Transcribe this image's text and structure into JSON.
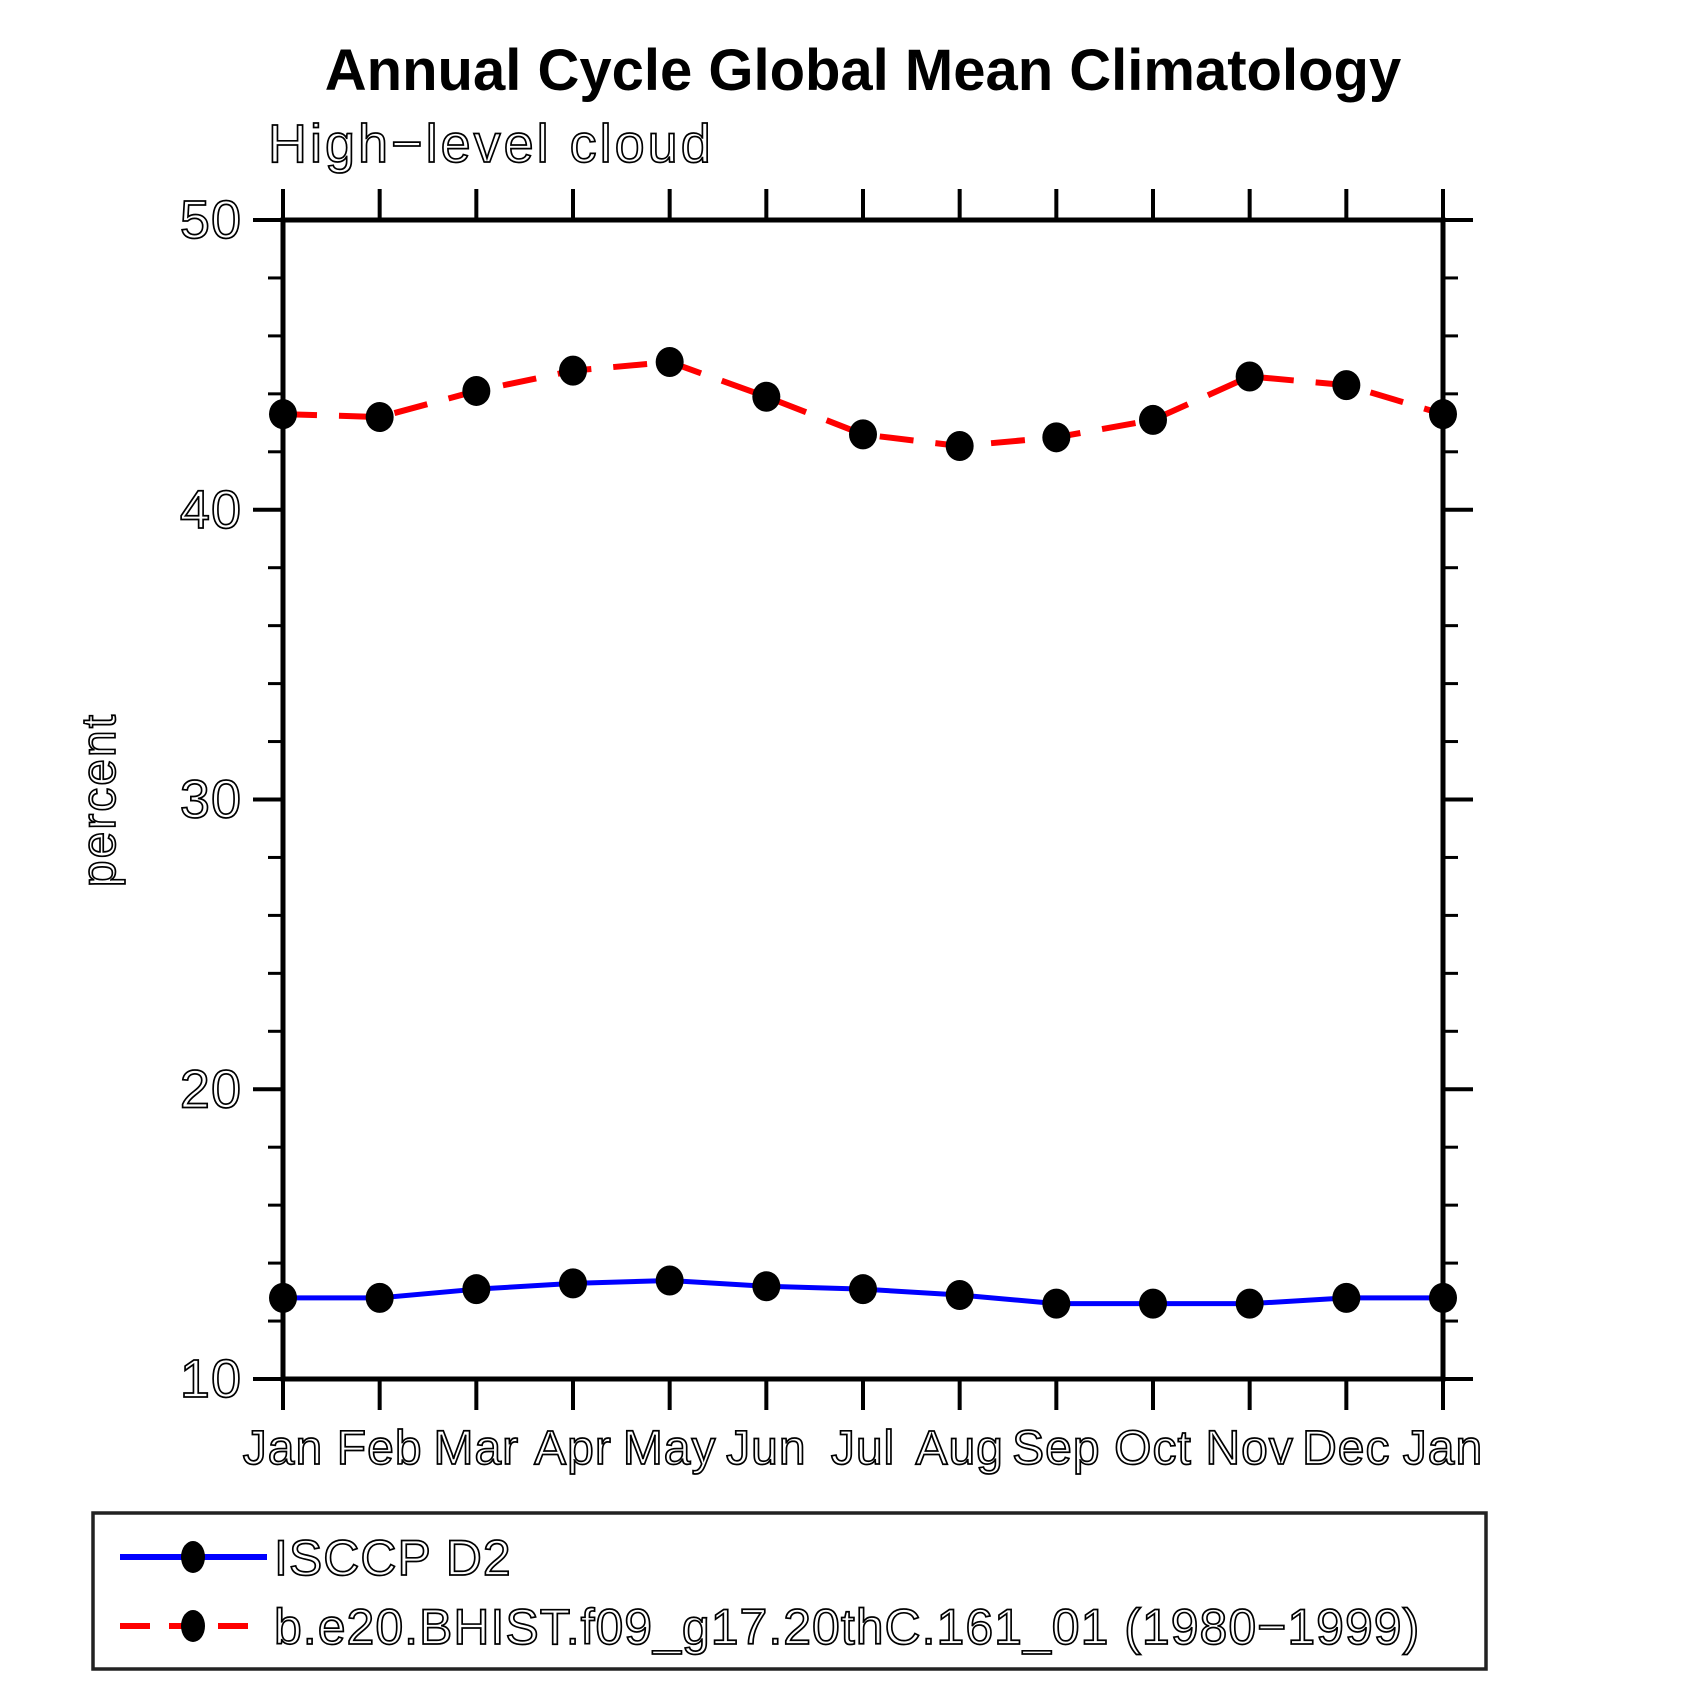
{
  "title": "Annual Cycle Global Mean Climatology",
  "subtitle": "High−level cloud",
  "chart_data": {
    "type": "line",
    "x_categories": [
      "Jan",
      "Feb",
      "Mar",
      "Apr",
      "May",
      "Jun",
      "Jul",
      "Aug",
      "Sep",
      "Oct",
      "Nov",
      "Dec",
      "Jan"
    ],
    "xlabel": "",
    "ylabel": "percent",
    "ylim": [
      10,
      50
    ],
    "y_major_ticks": [
      10,
      20,
      30,
      40,
      50
    ],
    "y_minor_step": 2,
    "grid": false,
    "legend_position": "bottom",
    "frame": "full-box-outward-ticks",
    "series": [
      {
        "name": "ISCCP D2",
        "line_style": "solid",
        "color": "#0000ff",
        "marker": "filled-circle",
        "marker_color": "#000000",
        "values": [
          12.8,
          12.8,
          13.1,
          13.3,
          13.4,
          13.2,
          13.1,
          12.9,
          12.6,
          12.6,
          12.6,
          12.8,
          12.8
        ]
      },
      {
        "name": "b.e20.BHIST.f09_g17.20thC.161_01 (1980−1999)",
        "line_style": "dashed",
        "color": "#ff0000",
        "marker": "filled-circle",
        "marker_color": "#000000",
        "values": [
          43.3,
          43.2,
          44.1,
          44.8,
          45.1,
          43.9,
          42.6,
          42.2,
          42.5,
          43.1,
          44.6,
          44.3,
          43.3
        ]
      }
    ]
  }
}
